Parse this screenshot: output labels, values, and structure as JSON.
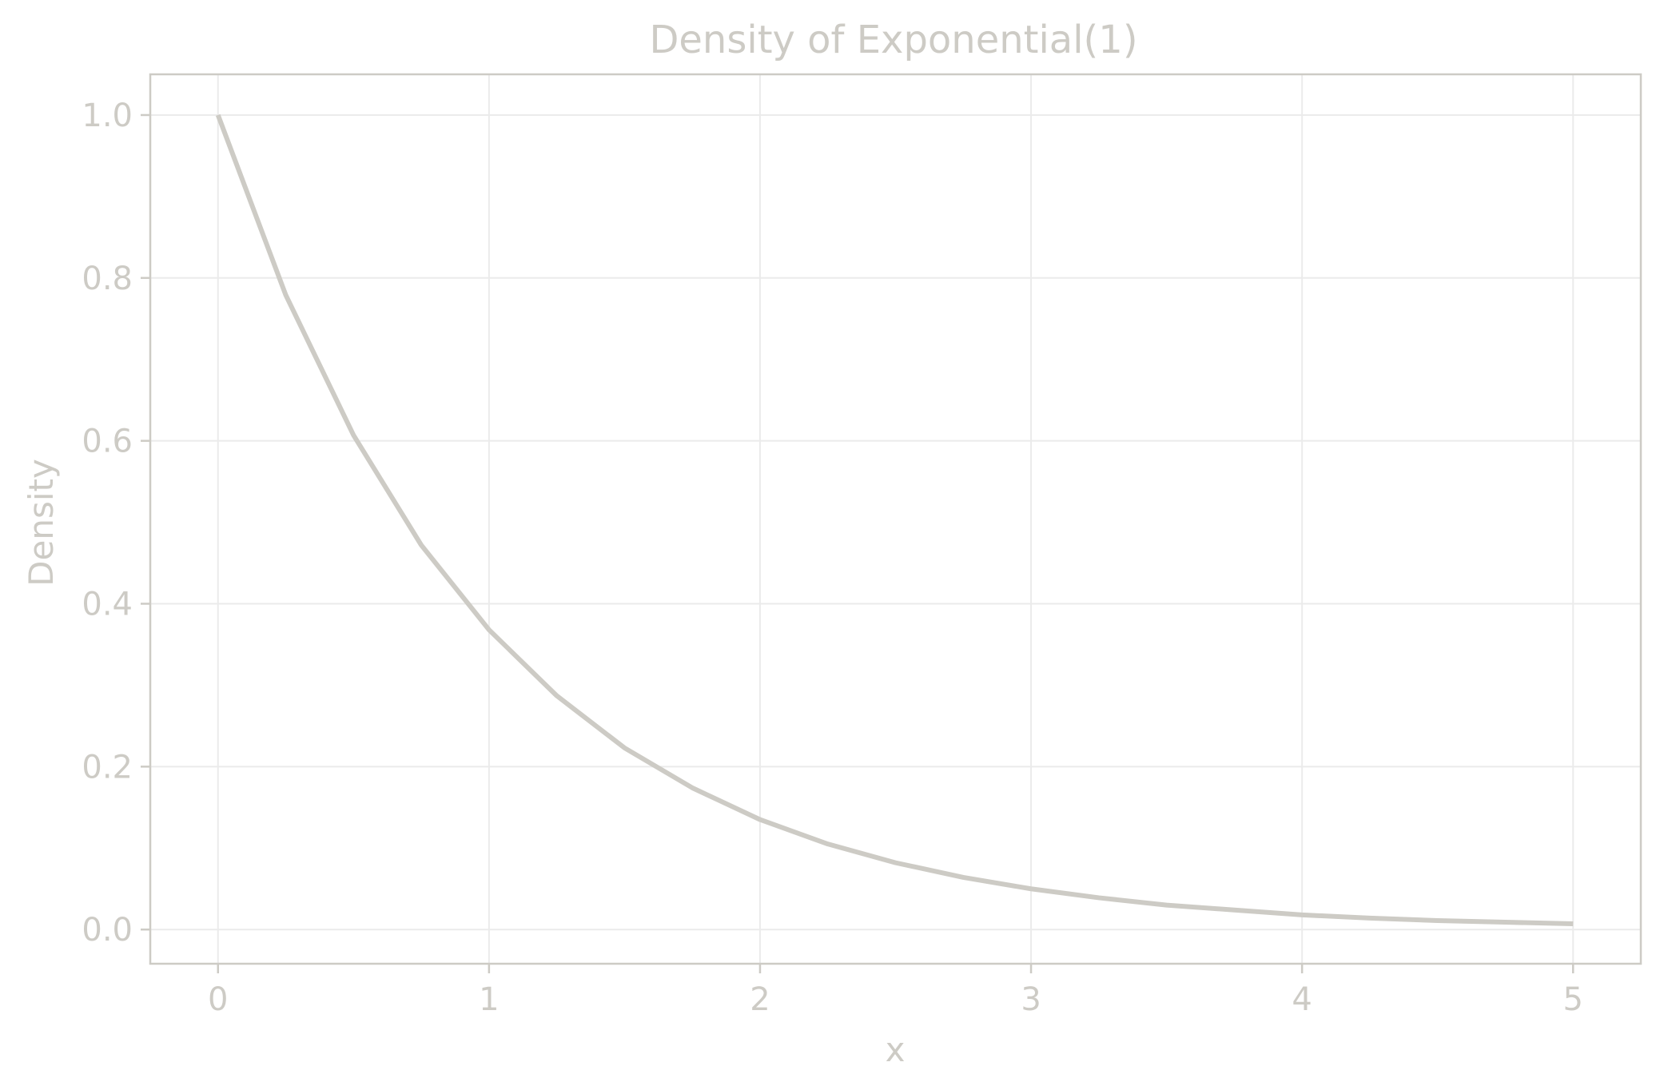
{
  "chart_data": {
    "type": "line",
    "title": "Density of Exponential(1)",
    "xlabel": "x",
    "ylabel": "Density",
    "xlim": [
      -0.25,
      5.25
    ],
    "ylim": [
      -0.042,
      1.05
    ],
    "grid": true,
    "legend": "none",
    "x_ticks": [
      "0",
      "1",
      "2",
      "3",
      "4",
      "5"
    ],
    "y_ticks": [
      "0.0",
      "0.2",
      "0.4",
      "0.6",
      "0.8",
      "1.0"
    ],
    "series": [
      {
        "x": [
          0,
          0.25,
          0.5,
          0.75,
          1,
          1.25,
          1.5,
          1.75,
          2,
          2.25,
          2.5,
          2.75,
          3,
          3.25,
          3.5,
          3.75,
          4,
          4.25,
          4.5,
          4.75,
          5
        ],
        "values": [
          1.0,
          0.779,
          0.607,
          0.472,
          0.368,
          0.287,
          0.223,
          0.174,
          0.135,
          0.105,
          0.082,
          0.064,
          0.05,
          0.039,
          0.03,
          0.024,
          0.018,
          0.014,
          0.011,
          0.009,
          0.007
        ]
      }
    ]
  },
  "colors": {
    "line": "#cdcbc5",
    "text": "#cdcbc5",
    "axes": "#cdcbc5",
    "grid": "#ebebeb"
  }
}
